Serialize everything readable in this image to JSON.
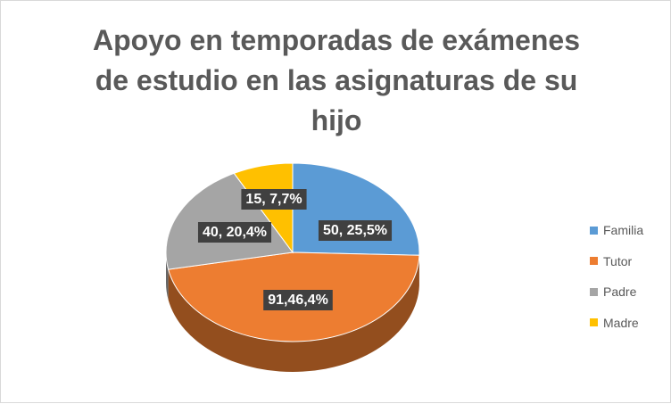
{
  "chart_data": {
    "type": "pie",
    "title_lines": [
      "Apoyo en temporadas de exámenes",
      "de estudio en las asignaturas de su",
      "hijo"
    ],
    "categories": [
      "Familia",
      "Tutor",
      "Padre",
      "Madre"
    ],
    "values": [
      50,
      91,
      40,
      15
    ],
    "percentages": [
      25.5,
      46.4,
      20.4,
      7.7
    ],
    "data_labels": [
      "50, 25,5%",
      "91,46,4%",
      "40, 20,4%",
      "15, 7,7%"
    ],
    "colors": [
      "#5b9bd5",
      "#ed7d31",
      "#a5a5a5",
      "#ffc000"
    ],
    "legend_position": "right",
    "style": "3d-pie"
  }
}
